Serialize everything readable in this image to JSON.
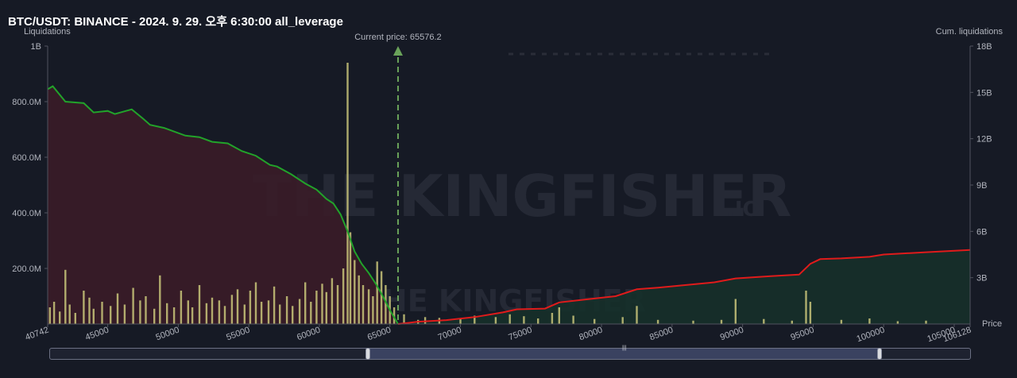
{
  "header": {
    "title": "BTC/USDT: BINANCE - 2024. 9. 29. 오후 6:30:00 all_leverage"
  },
  "watermark": {
    "text": "THE KINGFISHER",
    "suffix": ".IO"
  },
  "colors": {
    "background": "#161a25",
    "long_area": "#3a1c28",
    "short_area": "#16302a",
    "long_line": "#22a32a",
    "short_line": "#e01b1b",
    "bars": "#c9c67a",
    "current_price_line": "#6aa35a"
  },
  "chart_data": {
    "type": "bar",
    "title": "BTC/USDT: BINANCE - 2024. 9. 29. 오후 6:30:00 all_leverage",
    "ylabel": "Liquidations",
    "y2label": "Cum. liquidations",
    "xlabel": "Price",
    "xlim": [
      40742,
      106128
    ],
    "ylim": [
      0,
      1000000000
    ],
    "y2lim": [
      0,
      18000000000
    ],
    "x_ticks": [
      "40742",
      "45000",
      "50000",
      "55000",
      "60000",
      "65000",
      "70000",
      "75000",
      "80000",
      "85000",
      "90000",
      "95000",
      "100000",
      "105000",
      "106128"
    ],
    "y_ticks": [
      "200.0M",
      "400.0M",
      "600.0M",
      "800.0M",
      "1B"
    ],
    "y2_ticks": [
      "3B",
      "6B",
      "9B",
      "12B",
      "15B",
      "18B"
    ],
    "current_price": 65576.2,
    "current_price_label": "Current price: 65576.2",
    "grid": false,
    "bars": [
      {
        "x": 40900,
        "y": 60000000
      },
      {
        "x": 41200,
        "y": 80000000
      },
      {
        "x": 41600,
        "y": 45000000
      },
      {
        "x": 42000,
        "y": 195000000
      },
      {
        "x": 42300,
        "y": 70000000
      },
      {
        "x": 42700,
        "y": 40000000
      },
      {
        "x": 43300,
        "y": 120000000
      },
      {
        "x": 43700,
        "y": 95000000
      },
      {
        "x": 44000,
        "y": 55000000
      },
      {
        "x": 44600,
        "y": 80000000
      },
      {
        "x": 45200,
        "y": 65000000
      },
      {
        "x": 45700,
        "y": 110000000
      },
      {
        "x": 46200,
        "y": 70000000
      },
      {
        "x": 46800,
        "y": 130000000
      },
      {
        "x": 47300,
        "y": 85000000
      },
      {
        "x": 47700,
        "y": 100000000
      },
      {
        "x": 48300,
        "y": 55000000
      },
      {
        "x": 48700,
        "y": 175000000
      },
      {
        "x": 49200,
        "y": 75000000
      },
      {
        "x": 49700,
        "y": 60000000
      },
      {
        "x": 50200,
        "y": 120000000
      },
      {
        "x": 50700,
        "y": 85000000
      },
      {
        "x": 51000,
        "y": 60000000
      },
      {
        "x": 51500,
        "y": 140000000
      },
      {
        "x": 52000,
        "y": 75000000
      },
      {
        "x": 52400,
        "y": 95000000
      },
      {
        "x": 52900,
        "y": 85000000
      },
      {
        "x": 53300,
        "y": 65000000
      },
      {
        "x": 53800,
        "y": 105000000
      },
      {
        "x": 54200,
        "y": 125000000
      },
      {
        "x": 54700,
        "y": 70000000
      },
      {
        "x": 55100,
        "y": 120000000
      },
      {
        "x": 55500,
        "y": 150000000
      },
      {
        "x": 55900,
        "y": 80000000
      },
      {
        "x": 56400,
        "y": 85000000
      },
      {
        "x": 56800,
        "y": 135000000
      },
      {
        "x": 57200,
        "y": 70000000
      },
      {
        "x": 57700,
        "y": 100000000
      },
      {
        "x": 58100,
        "y": 65000000
      },
      {
        "x": 58600,
        "y": 90000000
      },
      {
        "x": 59000,
        "y": 150000000
      },
      {
        "x": 59400,
        "y": 80000000
      },
      {
        "x": 59800,
        "y": 120000000
      },
      {
        "x": 60200,
        "y": 145000000
      },
      {
        "x": 60500,
        "y": 115000000
      },
      {
        "x": 60900,
        "y": 165000000
      },
      {
        "x": 61300,
        "y": 140000000
      },
      {
        "x": 61700,
        "y": 200000000
      },
      {
        "x": 62000,
        "y": 940000000
      },
      {
        "x": 62200,
        "y": 330000000
      },
      {
        "x": 62500,
        "y": 230000000
      },
      {
        "x": 62800,
        "y": 175000000
      },
      {
        "x": 63100,
        "y": 140000000
      },
      {
        "x": 63500,
        "y": 125000000
      },
      {
        "x": 63800,
        "y": 100000000
      },
      {
        "x": 64100,
        "y": 225000000
      },
      {
        "x": 64400,
        "y": 190000000
      },
      {
        "x": 64700,
        "y": 140000000
      },
      {
        "x": 65000,
        "y": 100000000
      },
      {
        "x": 65300,
        "y": 60000000
      },
      {
        "x": 66000,
        "y": 35000000
      },
      {
        "x": 67000,
        "y": 15000000
      },
      {
        "x": 67500,
        "y": 25000000
      },
      {
        "x": 68500,
        "y": 22000000
      },
      {
        "x": 70000,
        "y": 18000000
      },
      {
        "x": 71000,
        "y": 30000000
      },
      {
        "x": 72500,
        "y": 25000000
      },
      {
        "x": 73500,
        "y": 35000000
      },
      {
        "x": 74500,
        "y": 28000000
      },
      {
        "x": 75500,
        "y": 20000000
      },
      {
        "x": 76500,
        "y": 40000000
      },
      {
        "x": 77000,
        "y": 60000000
      },
      {
        "x": 78000,
        "y": 30000000
      },
      {
        "x": 79500,
        "y": 18000000
      },
      {
        "x": 81500,
        "y": 25000000
      },
      {
        "x": 82500,
        "y": 65000000
      },
      {
        "x": 84000,
        "y": 15000000
      },
      {
        "x": 86500,
        "y": 12000000
      },
      {
        "x": 88500,
        "y": 15000000
      },
      {
        "x": 89500,
        "y": 90000000
      },
      {
        "x": 91500,
        "y": 18000000
      },
      {
        "x": 93500,
        "y": 12000000
      },
      {
        "x": 94500,
        "y": 120000000
      },
      {
        "x": 94800,
        "y": 80000000
      },
      {
        "x": 97000,
        "y": 15000000
      },
      {
        "x": 99000,
        "y": 20000000
      },
      {
        "x": 101000,
        "y": 10000000
      },
      {
        "x": 103000,
        "y": 12000000
      }
    ],
    "cum_long": [
      {
        "x": 40742,
        "y": 15200000000
      },
      {
        "x": 41100,
        "y": 15400000000
      },
      {
        "x": 42000,
        "y": 14400000000
      },
      {
        "x": 43300,
        "y": 14300000000
      },
      {
        "x": 44000,
        "y": 13700000000
      },
      {
        "x": 45000,
        "y": 13800000000
      },
      {
        "x": 45500,
        "y": 13600000000
      },
      {
        "x": 46700,
        "y": 13900000000
      },
      {
        "x": 47500,
        "y": 13300000000
      },
      {
        "x": 48000,
        "y": 12900000000
      },
      {
        "x": 49000,
        "y": 12700000000
      },
      {
        "x": 50500,
        "y": 12200000000
      },
      {
        "x": 51500,
        "y": 12100000000
      },
      {
        "x": 52400,
        "y": 11800000000
      },
      {
        "x": 53500,
        "y": 11700000000
      },
      {
        "x": 54500,
        "y": 11200000000
      },
      {
        "x": 55500,
        "y": 10900000000
      },
      {
        "x": 56500,
        "y": 10300000000
      },
      {
        "x": 57000,
        "y": 10200000000
      },
      {
        "x": 58000,
        "y": 9700000000
      },
      {
        "x": 59000,
        "y": 9100000000
      },
      {
        "x": 59800,
        "y": 8700000000
      },
      {
        "x": 60500,
        "y": 8100000000
      },
      {
        "x": 61000,
        "y": 7800000000
      },
      {
        "x": 61500,
        "y": 7100000000
      },
      {
        "x": 62000,
        "y": 6000000000
      },
      {
        "x": 62500,
        "y": 4700000000
      },
      {
        "x": 63000,
        "y": 3900000000
      },
      {
        "x": 63500,
        "y": 3300000000
      },
      {
        "x": 64000,
        "y": 2600000000
      },
      {
        "x": 64500,
        "y": 1800000000
      },
      {
        "x": 65000,
        "y": 900000000
      },
      {
        "x": 65576,
        "y": 0
      }
    ],
    "cum_short": [
      {
        "x": 65576,
        "y": 0
      },
      {
        "x": 67000,
        "y": 150000000
      },
      {
        "x": 69000,
        "y": 250000000
      },
      {
        "x": 71000,
        "y": 450000000
      },
      {
        "x": 73000,
        "y": 750000000
      },
      {
        "x": 74000,
        "y": 950000000
      },
      {
        "x": 76000,
        "y": 1000000000
      },
      {
        "x": 77000,
        "y": 1400000000
      },
      {
        "x": 79000,
        "y": 1600000000
      },
      {
        "x": 81000,
        "y": 1800000000
      },
      {
        "x": 82500,
        "y": 2250000000
      },
      {
        "x": 84000,
        "y": 2350000000
      },
      {
        "x": 88000,
        "y": 2700000000
      },
      {
        "x": 89500,
        "y": 2950000000
      },
      {
        "x": 92000,
        "y": 3100000000
      },
      {
        "x": 94000,
        "y": 3200000000
      },
      {
        "x": 94800,
        "y": 3900000000
      },
      {
        "x": 95500,
        "y": 4200000000
      },
      {
        "x": 97000,
        "y": 4250000000
      },
      {
        "x": 99000,
        "y": 4350000000
      },
      {
        "x": 100000,
        "y": 4500000000
      },
      {
        "x": 103000,
        "y": 4650000000
      },
      {
        "x": 106128,
        "y": 4800000000
      }
    ]
  }
}
